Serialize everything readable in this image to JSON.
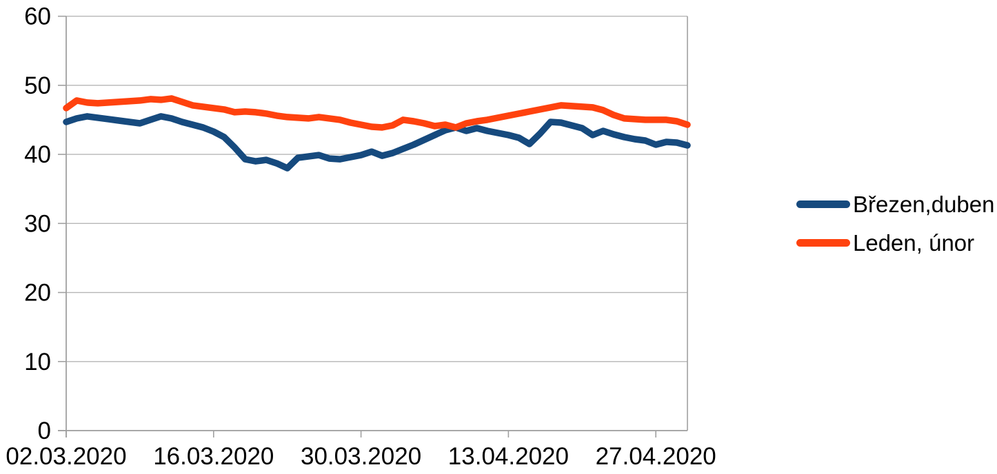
{
  "chart_data": {
    "type": "line",
    "title": "",
    "xlabel": "",
    "ylabel": "",
    "ylim": [
      0,
      60
    ],
    "y_ticks": [
      0,
      10,
      20,
      30,
      40,
      50,
      60
    ],
    "x_tick_labels": [
      "02.03.2020",
      "16.03.2020",
      "30.03.2020",
      "13.04.2020",
      "27.04.2020"
    ],
    "x_tick_interval_points": 14,
    "n_points": 60,
    "grid": "horizontal",
    "legend_position": "right",
    "axis_color": "#a0a0a0",
    "grid_color": "#b6b6b6",
    "text_color": "#000000",
    "series": [
      {
        "name": "Březen,duben",
        "color": "#164a7e",
        "values": [
          44.7,
          45.2,
          45.5,
          45.3,
          45.1,
          44.9,
          44.7,
          44.5,
          45.0,
          45.5,
          45.2,
          44.7,
          44.3,
          43.9,
          43.3,
          42.5,
          41.0,
          39.3,
          39.0,
          39.2,
          38.7,
          38.0,
          39.5,
          39.7,
          39.9,
          39.4,
          39.3,
          39.6,
          39.9,
          40.4,
          39.8,
          40.2,
          40.8,
          41.4,
          42.1,
          42.8,
          43.5,
          43.9,
          43.4,
          43.8,
          43.4,
          43.1,
          42.8,
          42.4,
          41.5,
          43.0,
          44.7,
          44.6,
          44.2,
          43.8,
          42.8,
          43.4,
          42.9,
          42.5,
          42.2,
          42.0,
          41.4,
          41.8,
          41.7,
          41.3
        ]
      },
      {
        "name": "Leden, únor",
        "color": "#ff420e",
        "values": [
          46.7,
          47.8,
          47.5,
          47.4,
          47.5,
          47.6,
          47.7,
          47.8,
          48.0,
          47.9,
          48.1,
          47.6,
          47.1,
          46.9,
          46.7,
          46.5,
          46.1,
          46.2,
          46.1,
          45.9,
          45.6,
          45.4,
          45.3,
          45.2,
          45.4,
          45.2,
          45.0,
          44.6,
          44.3,
          44.0,
          43.9,
          44.2,
          45.0,
          44.8,
          44.5,
          44.1,
          44.3,
          43.9,
          44.5,
          44.8,
          45.0,
          45.3,
          45.6,
          45.9,
          46.2,
          46.5,
          46.8,
          47.1,
          47.0,
          46.9,
          46.8,
          46.4,
          45.7,
          45.2,
          45.1,
          45.0,
          45.0,
          45.0,
          44.8,
          44.3
        ]
      }
    ]
  },
  "legend": {
    "entries": [
      {
        "label": "Březen,duben"
      },
      {
        "label": "Leden, únor"
      }
    ]
  }
}
